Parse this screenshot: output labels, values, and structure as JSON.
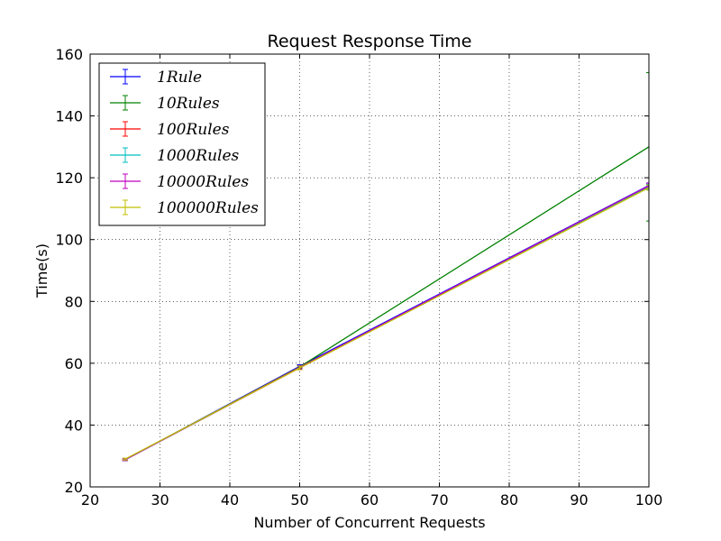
{
  "chart_data": {
    "type": "line",
    "title": "Request Response Time",
    "xlabel": "Number of Concurrent Requests",
    "ylabel": "Time(s)",
    "xlim": [
      20,
      100
    ],
    "ylim": [
      20,
      160
    ],
    "xticks": [
      20,
      30,
      40,
      50,
      60,
      70,
      80,
      90,
      100
    ],
    "yticks": [
      20,
      40,
      60,
      80,
      100,
      120,
      140,
      160
    ],
    "grid": true,
    "legend_position": "top-left",
    "x": [
      25,
      50,
      100
    ],
    "series": [
      {
        "name": "1Rule",
        "color": "#0000ff",
        "values": [
          28.8,
          59.0,
          117.5
        ],
        "errors": [
          0.3,
          0.5,
          0.8
        ]
      },
      {
        "name": "10Rules",
        "color": "#008000",
        "values": [
          28.8,
          58.8,
          130.0
        ],
        "errors": [
          0.3,
          0.4,
          24.0
        ]
      },
      {
        "name": "100Rules",
        "color": "#ff0000",
        "values": [
          28.8,
          58.5,
          117.0
        ],
        "errors": [
          0.3,
          0.6,
          0.8
        ]
      },
      {
        "name": "1000Rules",
        "color": "#00bfbf",
        "values": [
          28.8,
          58.6,
          117.0
        ],
        "errors": [
          0.3,
          0.5,
          0.8
        ]
      },
      {
        "name": "10000Rules",
        "color": "#bf00bf",
        "values": [
          28.8,
          58.7,
          117.4
        ],
        "errors": [
          0.3,
          0.5,
          0.8
        ]
      },
      {
        "name": "100000Rules",
        "color": "#bfbf00",
        "values": [
          29.0,
          58.5,
          116.8
        ],
        "errors": [
          0.3,
          0.6,
          0.8
        ]
      }
    ]
  }
}
